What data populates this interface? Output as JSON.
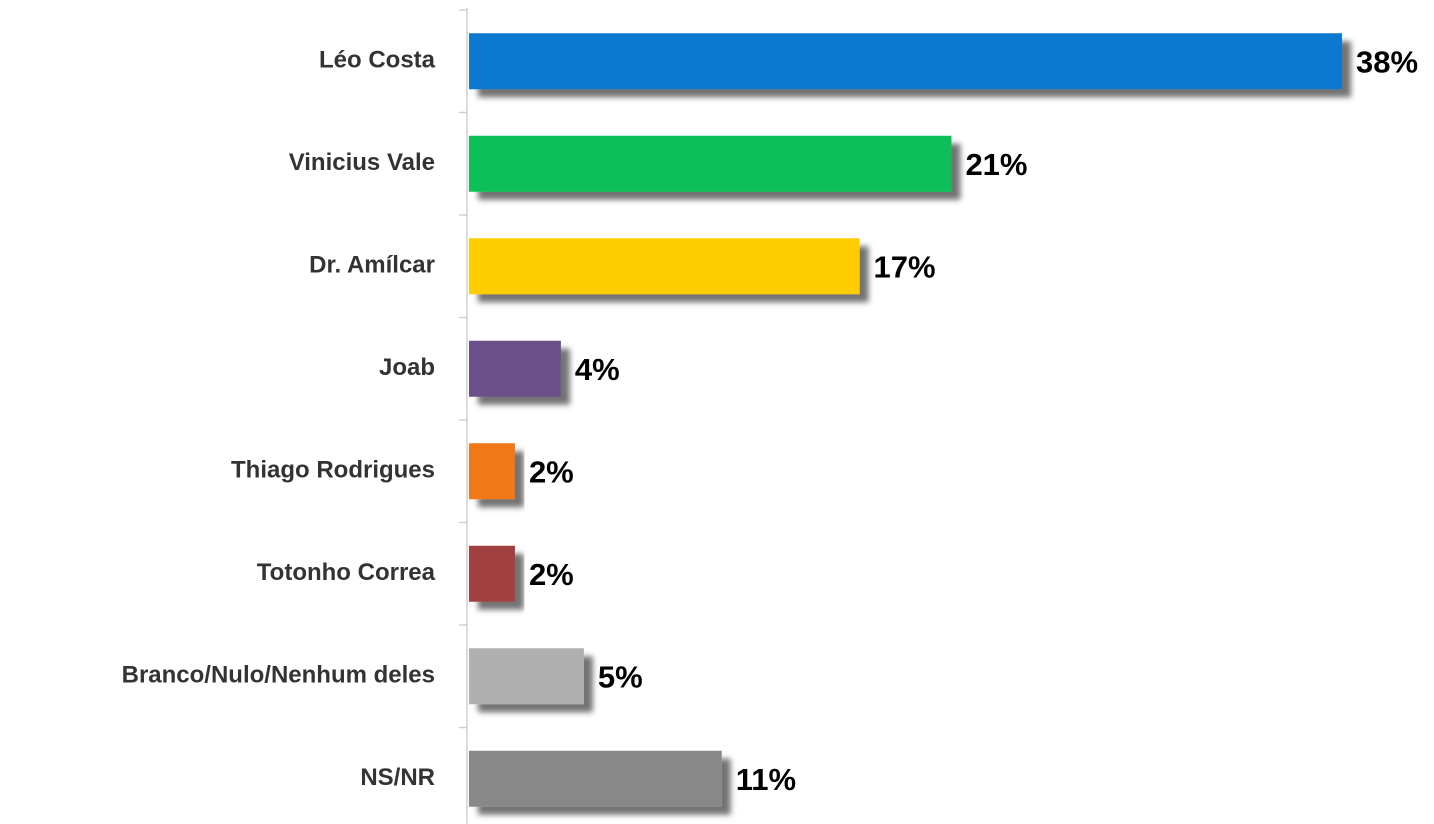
{
  "chart_data": {
    "type": "barh",
    "categories": [
      "Léo Costa",
      "Vinicius Vale",
      "Dr. Amílcar",
      "Joab",
      "Thiago Rodrigues",
      "Totonho Correa",
      "Branco/Nulo/Nenhum deles",
      "NS/NR"
    ],
    "values": [
      38,
      21,
      17,
      4,
      2,
      2,
      5,
      11
    ],
    "value_labels": [
      "38%",
      "21%",
      "17%",
      "4%",
      "2%",
      "2%",
      "5%",
      "11%"
    ],
    "colors": [
      "#0878d0",
      "#08bf58",
      "#ffcc00",
      "#6a5088",
      "#f07818",
      "#a04040",
      "#b0b0b0",
      "#888888"
    ]
  }
}
